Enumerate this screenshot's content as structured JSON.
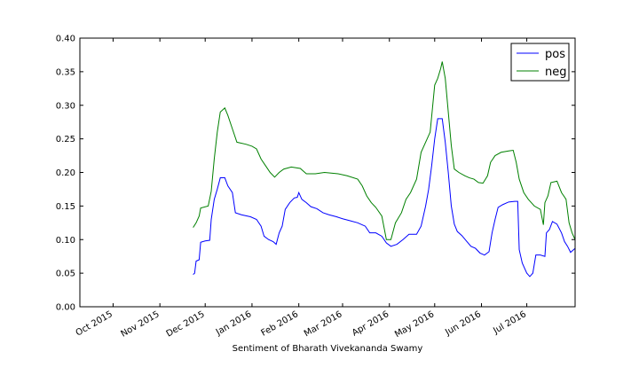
{
  "chart_data": {
    "type": "line",
    "title": "",
    "xlabel": "Sentiment of Bharath Vivekananda Swamy",
    "ylabel": "",
    "xlim": [
      "2015-09-09",
      "2016-08-02"
    ],
    "ylim": [
      0.0,
      0.4
    ],
    "x_ticks": [
      {
        "date": "2015-10-01",
        "label": "Oct 2015"
      },
      {
        "date": "2015-11-01",
        "label": "Nov 2015"
      },
      {
        "date": "2015-12-01",
        "label": "Dec 2015"
      },
      {
        "date": "2016-01-01",
        "label": "Jan 2016"
      },
      {
        "date": "2016-02-01",
        "label": "Feb 2016"
      },
      {
        "date": "2016-03-01",
        "label": "Mar 2016"
      },
      {
        "date": "2016-04-01",
        "label": "Apr 2016"
      },
      {
        "date": "2016-05-01",
        "label": "May 2016"
      },
      {
        "date": "2016-06-01",
        "label": "Jun 2016"
      },
      {
        "date": "2016-07-01",
        "label": "Jul 2016"
      }
    ],
    "y_ticks": [
      "0.00",
      "0.05",
      "0.10",
      "0.15",
      "0.20",
      "0.25",
      "0.30",
      "0.35",
      "0.40"
    ],
    "grid": false,
    "legend_position": "top-right",
    "series": [
      {
        "name": "pos",
        "color": "#0000ff",
        "points": [
          [
            "2015-11-23",
            0.048
          ],
          [
            "2015-11-24",
            0.05
          ],
          [
            "2015-11-25",
            0.068
          ],
          [
            "2015-11-27",
            0.07
          ],
          [
            "2015-11-28",
            0.096
          ],
          [
            "2015-12-01",
            0.098
          ],
          [
            "2015-12-04",
            0.099
          ],
          [
            "2015-12-05",
            0.13
          ],
          [
            "2015-12-07",
            0.16
          ],
          [
            "2015-12-09",
            0.175
          ],
          [
            "2015-12-11",
            0.192
          ],
          [
            "2015-12-14",
            0.192
          ],
          [
            "2015-12-16",
            0.18
          ],
          [
            "2015-12-19",
            0.17
          ],
          [
            "2015-12-21",
            0.14
          ],
          [
            "2015-12-25",
            0.137
          ],
          [
            "2015-12-31",
            0.134
          ],
          [
            "2016-01-04",
            0.13
          ],
          [
            "2016-01-07",
            0.12
          ],
          [
            "2016-01-09",
            0.105
          ],
          [
            "2016-01-12",
            0.1
          ],
          [
            "2016-01-15",
            0.097
          ],
          [
            "2016-01-17",
            0.093
          ],
          [
            "2016-01-19",
            0.11
          ],
          [
            "2016-01-21",
            0.12
          ],
          [
            "2016-01-23",
            0.145
          ],
          [
            "2016-01-26",
            0.155
          ],
          [
            "2016-01-29",
            0.162
          ],
          [
            "2016-01-31",
            0.163
          ],
          [
            "2016-02-01",
            0.17
          ],
          [
            "2016-02-03",
            0.16
          ],
          [
            "2016-02-06",
            0.155
          ],
          [
            "2016-02-09",
            0.149
          ],
          [
            "2016-02-13",
            0.146
          ],
          [
            "2016-02-17",
            0.14
          ],
          [
            "2016-02-21",
            0.137
          ],
          [
            "2016-02-26",
            0.134
          ],
          [
            "2016-03-01",
            0.131
          ],
          [
            "2016-03-06",
            0.128
          ],
          [
            "2016-03-11",
            0.125
          ],
          [
            "2016-03-16",
            0.12
          ],
          [
            "2016-03-19",
            0.11
          ],
          [
            "2016-03-23",
            0.11
          ],
          [
            "2016-03-27",
            0.105
          ],
          [
            "2016-03-30",
            0.095
          ],
          [
            "2016-04-02",
            0.09
          ],
          [
            "2016-04-06",
            0.093
          ],
          [
            "2016-04-10",
            0.1
          ],
          [
            "2016-04-14",
            0.108
          ],
          [
            "2016-04-19",
            0.108
          ],
          [
            "2016-04-22",
            0.12
          ],
          [
            "2016-04-25",
            0.15
          ],
          [
            "2016-04-27",
            0.175
          ],
          [
            "2016-04-29",
            0.21
          ],
          [
            "2016-05-01",
            0.25
          ],
          [
            "2016-05-03",
            0.28
          ],
          [
            "2016-05-06",
            0.28
          ],
          [
            "2016-05-08",
            0.245
          ],
          [
            "2016-05-10",
            0.2
          ],
          [
            "2016-05-12",
            0.15
          ],
          [
            "2016-05-14",
            0.123
          ],
          [
            "2016-05-16",
            0.112
          ],
          [
            "2016-05-19",
            0.106
          ],
          [
            "2016-05-22",
            0.098
          ],
          [
            "2016-05-25",
            0.09
          ],
          [
            "2016-05-28",
            0.087
          ],
          [
            "2016-05-31",
            0.08
          ],
          [
            "2016-06-03",
            0.077
          ],
          [
            "2016-06-06",
            0.082
          ],
          [
            "2016-06-08",
            0.11
          ],
          [
            "2016-06-10",
            0.13
          ],
          [
            "2016-06-12",
            0.148
          ],
          [
            "2016-06-15",
            0.152
          ],
          [
            "2016-06-19",
            0.156
          ],
          [
            "2016-06-23",
            0.157
          ],
          [
            "2016-06-25",
            0.157
          ],
          [
            "2016-06-26",
            0.085
          ],
          [
            "2016-06-28",
            0.065
          ],
          [
            "2016-07-01",
            0.05
          ],
          [
            "2016-07-03",
            0.045
          ],
          [
            "2016-07-05",
            0.05
          ],
          [
            "2016-07-07",
            0.077
          ],
          [
            "2016-07-10",
            0.077
          ],
          [
            "2016-07-13",
            0.075
          ],
          [
            "2016-07-14",
            0.11
          ],
          [
            "2016-07-16",
            0.115
          ],
          [
            "2016-07-18",
            0.127
          ],
          [
            "2016-07-21",
            0.123
          ],
          [
            "2016-07-24",
            0.11
          ],
          [
            "2016-07-26",
            0.097
          ],
          [
            "2016-07-28",
            0.09
          ],
          [
            "2016-07-30",
            0.081
          ],
          [
            "2016-08-01",
            0.085
          ],
          [
            "2016-08-02",
            0.087
          ]
        ]
      },
      {
        "name": "neg",
        "color": "#008000",
        "points": [
          [
            "2015-11-23",
            0.118
          ],
          [
            "2015-11-25",
            0.125
          ],
          [
            "2015-11-27",
            0.135
          ],
          [
            "2015-11-28",
            0.147
          ],
          [
            "2015-12-03",
            0.15
          ],
          [
            "2015-12-05",
            0.172
          ],
          [
            "2015-12-07",
            0.22
          ],
          [
            "2015-12-09",
            0.26
          ],
          [
            "2015-12-11",
            0.29
          ],
          [
            "2015-12-14",
            0.296
          ],
          [
            "2015-12-16",
            0.285
          ],
          [
            "2015-12-19",
            0.265
          ],
          [
            "2015-12-22",
            0.245
          ],
          [
            "2015-12-28",
            0.242
          ],
          [
            "2016-01-01",
            0.239
          ],
          [
            "2016-01-04",
            0.235
          ],
          [
            "2016-01-07",
            0.22
          ],
          [
            "2016-01-10",
            0.21
          ],
          [
            "2016-01-13",
            0.2
          ],
          [
            "2016-01-16",
            0.193
          ],
          [
            "2016-01-19",
            0.2
          ],
          [
            "2016-01-22",
            0.205
          ],
          [
            "2016-01-27",
            0.208
          ],
          [
            "2016-02-02",
            0.206
          ],
          [
            "2016-02-06",
            0.198
          ],
          [
            "2016-02-12",
            0.198
          ],
          [
            "2016-02-18",
            0.2
          ],
          [
            "2016-02-27",
            0.198
          ],
          [
            "2016-03-04",
            0.195
          ],
          [
            "2016-03-11",
            0.19
          ],
          [
            "2016-03-14",
            0.18
          ],
          [
            "2016-03-17",
            0.165
          ],
          [
            "2016-03-20",
            0.155
          ],
          [
            "2016-03-23",
            0.148
          ],
          [
            "2016-03-27",
            0.135
          ],
          [
            "2016-03-30",
            0.1
          ],
          [
            "2016-04-02",
            0.1
          ],
          [
            "2016-04-05",
            0.125
          ],
          [
            "2016-04-09",
            0.14
          ],
          [
            "2016-04-12",
            0.16
          ],
          [
            "2016-04-15",
            0.17
          ],
          [
            "2016-04-19",
            0.19
          ],
          [
            "2016-04-22",
            0.23
          ],
          [
            "2016-04-25",
            0.245
          ],
          [
            "2016-04-28",
            0.26
          ],
          [
            "2016-05-01",
            0.33
          ],
          [
            "2016-05-03",
            0.34
          ],
          [
            "2016-05-05",
            0.355
          ],
          [
            "2016-05-06",
            0.365
          ],
          [
            "2016-05-08",
            0.34
          ],
          [
            "2016-05-10",
            0.29
          ],
          [
            "2016-05-12",
            0.24
          ],
          [
            "2016-05-14",
            0.205
          ],
          [
            "2016-05-17",
            0.2
          ],
          [
            "2016-05-21",
            0.195
          ],
          [
            "2016-05-24",
            0.192
          ],
          [
            "2016-05-27",
            0.19
          ],
          [
            "2016-05-30",
            0.185
          ],
          [
            "2016-06-02",
            0.184
          ],
          [
            "2016-06-05",
            0.195
          ],
          [
            "2016-06-07",
            0.215
          ],
          [
            "2016-06-10",
            0.225
          ],
          [
            "2016-06-14",
            0.23
          ],
          [
            "2016-06-19",
            0.232
          ],
          [
            "2016-06-22",
            0.233
          ],
          [
            "2016-06-24",
            0.215
          ],
          [
            "2016-06-26",
            0.19
          ],
          [
            "2016-06-29",
            0.17
          ],
          [
            "2016-07-02",
            0.16
          ],
          [
            "2016-07-06",
            0.15
          ],
          [
            "2016-07-10",
            0.145
          ],
          [
            "2016-07-12",
            0.122
          ],
          [
            "2016-07-13",
            0.155
          ],
          [
            "2016-07-15",
            0.165
          ],
          [
            "2016-07-17",
            0.185
          ],
          [
            "2016-07-21",
            0.187
          ],
          [
            "2016-07-24",
            0.17
          ],
          [
            "2016-07-27",
            0.16
          ],
          [
            "2016-07-29",
            0.125
          ],
          [
            "2016-07-31",
            0.11
          ],
          [
            "2016-08-02",
            0.1
          ]
        ]
      }
    ]
  }
}
